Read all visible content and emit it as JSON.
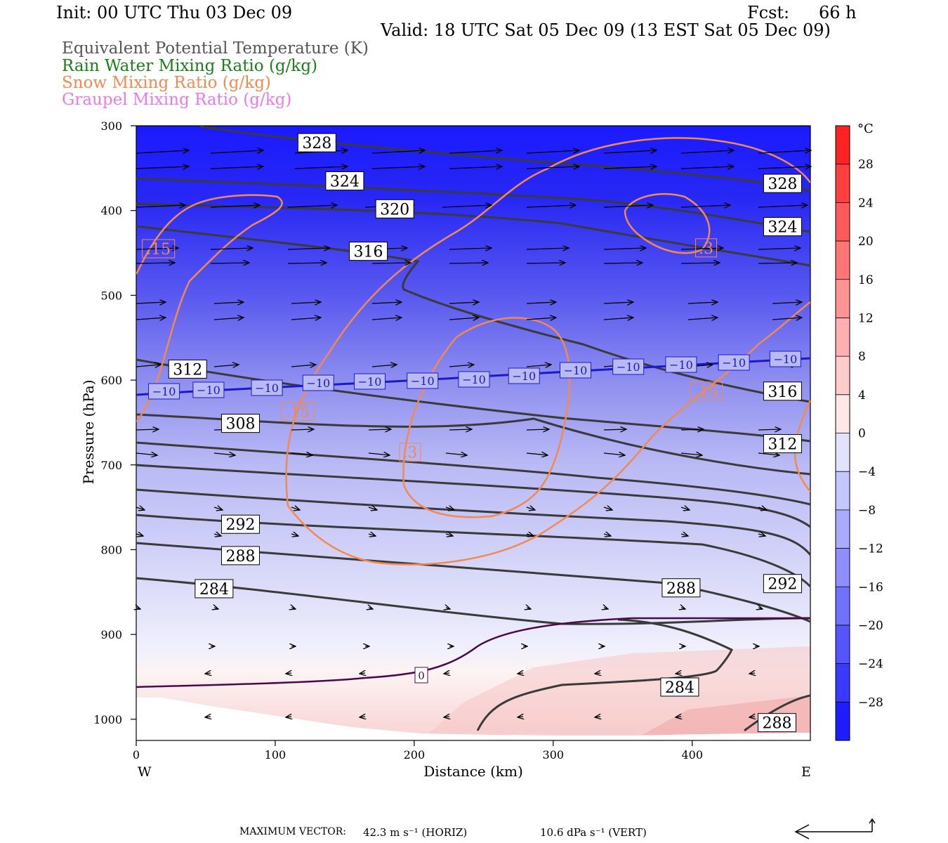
{
  "header": {
    "init": "Init: 00 UTC Thu 03 Dec 09",
    "fcst_label": "Fcst:",
    "fcst_value": "66 h",
    "valid": "Valid: 18 UTC Sat 05 Dec 09 (13 EST Sat 05 Dec 09)"
  },
  "legend": [
    {
      "text": "Equivalent Potential Temperature (K)",
      "color": "#555555"
    },
    {
      "text": "Rain Water Mixing Ratio (g/kg)",
      "color": "#1a7f1a"
    },
    {
      "text": "Snow Mixing Ratio (g/kg)",
      "color": "#f08a50"
    },
    {
      "text": "Graupel Mixing Ratio (g/kg)",
      "color": "#ee77ee"
    }
  ],
  "footer": {
    "max_vector_label": "MAXIMUM VECTOR:",
    "horiz": "42.3 m s⁻¹ (HORIZ)",
    "vert": "10.6 dPa s⁻¹ (VERT)"
  },
  "chart_data": {
    "type": "cross-section",
    "xlabel": "Distance (km)",
    "ylabel": "Pressure (hPa)",
    "x_ticks": [
      "0",
      "100",
      "200",
      "300",
      "400"
    ],
    "x_end_labels": {
      "left": "W",
      "right": "E"
    },
    "y_ticks": [
      "300",
      "400",
      "500",
      "600",
      "700",
      "800",
      "900",
      "1000"
    ],
    "xlim": [
      0,
      485
    ],
    "ylim": [
      300,
      1025
    ],
    "colorbar": {
      "unit": "°C",
      "labels": [
        "28",
        "24",
        "20",
        "16",
        "12",
        "8",
        "4",
        "0",
        "−4",
        "−8",
        "−12",
        "−16",
        "−20",
        "−24",
        "−28"
      ],
      "range": [
        -32,
        32
      ]
    },
    "theta_e_labels": [
      {
        "text": "328",
        "x": 130,
        "p": 320
      },
      {
        "text": "324",
        "x": 150,
        "p": 365
      },
      {
        "text": "320",
        "x": 186,
        "p": 398
      },
      {
        "text": "316",
        "x": 167,
        "p": 448
      },
      {
        "text": "312",
        "x": 37,
        "p": 587
      },
      {
        "text": "308",
        "x": 75,
        "p": 651
      },
      {
        "text": "292",
        "x": 75,
        "p": 770
      },
      {
        "text": "288",
        "x": 75,
        "p": 807
      },
      {
        "text": "284",
        "x": 56,
        "p": 846
      },
      {
        "text": "328",
        "x": 465,
        "p": 368
      },
      {
        "text": "324",
        "x": 465,
        "p": 419
      },
      {
        "text": "316",
        "x": 465,
        "p": 613
      },
      {
        "text": "312",
        "x": 465,
        "p": 675
      },
      {
        "text": "292",
        "x": 465,
        "p": 840
      },
      {
        "text": "288",
        "x": 392,
        "p": 845
      },
      {
        "text": "284",
        "x": 391,
        "p": 962
      },
      {
        "text": "288",
        "x": 461,
        "p": 1004
      }
    ],
    "temp_label_minus10": "−10",
    "snow_labels": [
      {
        "text": ".15",
        "x": 16,
        "p": 445
      },
      {
        "text": ".15",
        "x": 116,
        "p": 637
      },
      {
        "text": ".3",
        "x": 197,
        "p": 685
      },
      {
        "text": ".3",
        "x": 410,
        "p": 444
      },
      {
        "text": ".15",
        "x": 410,
        "p": 613
      }
    ],
    "zero_label": "0"
  }
}
